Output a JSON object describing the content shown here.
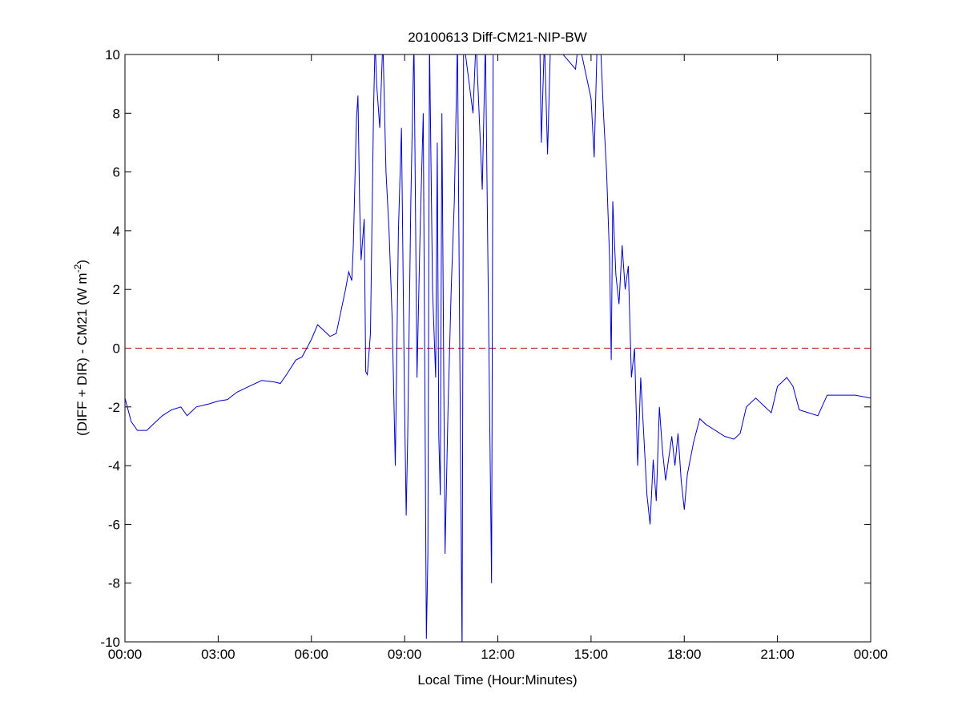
{
  "chart_data": {
    "type": "line",
    "title": "20100613 Diff-CM21-NIP-BW",
    "xlabel": "Local Time (Hour:Minutes)",
    "ylabel_main": "(DIFF + DIR) - CM21 (W m",
    "ylabel_sup": "-2",
    "ylabel_close": ")",
    "xlim": [
      "00:00",
      "00:00 (next day)"
    ],
    "ylim": [
      -10,
      10
    ],
    "grid": false,
    "x_ticks": [
      "00:00",
      "03:00",
      "06:00",
      "09:00",
      "12:00",
      "15:00",
      "18:00",
      "21:00",
      "00:00"
    ],
    "y_ticks": [
      "-10",
      "-8",
      "-6",
      "-4",
      "-2",
      "0",
      "2",
      "4",
      "6",
      "8",
      "10"
    ],
    "reference_line": {
      "y": 0,
      "style": "dashed",
      "color": "#c00000"
    },
    "series_color": "#0000cc",
    "x_unit": "hours of day",
    "series": [
      {
        "points": [
          [
            0,
            -1.7
          ],
          [
            0.2,
            -2.5
          ],
          [
            0.4,
            -2.8
          ],
          [
            0.7,
            -2.8
          ],
          [
            0.9,
            -2.6
          ],
          [
            1.2,
            -2.3
          ],
          [
            1.5,
            -2.1
          ],
          [
            1.8,
            -2.0
          ],
          [
            2.0,
            -2.3
          ],
          [
            2.3,
            -2.0
          ],
          [
            2.7,
            -1.9
          ],
          [
            3.0,
            -1.8
          ],
          [
            3.3,
            -1.75
          ],
          [
            3.6,
            -1.5
          ],
          [
            4.0,
            -1.3
          ],
          [
            4.4,
            -1.1
          ],
          [
            4.8,
            -1.15
          ],
          [
            5.0,
            -1.2
          ],
          [
            5.2,
            -0.9
          ],
          [
            5.5,
            -0.4
          ],
          [
            5.7,
            -0.3
          ],
          [
            6.0,
            0.3
          ],
          [
            6.2,
            0.8
          ],
          [
            6.4,
            0.6
          ],
          [
            6.6,
            0.4
          ],
          [
            6.8,
            0.5
          ],
          [
            7.0,
            1.5
          ],
          [
            7.1,
            2.0
          ],
          [
            7.2,
            2.6
          ],
          [
            7.3,
            2.3
          ],
          [
            7.35,
            3.5
          ],
          [
            7.45,
            7.8
          ],
          [
            7.5,
            8.6
          ],
          [
            7.55,
            5.0
          ],
          [
            7.6,
            3.0
          ],
          [
            7.7,
            4.4
          ],
          [
            7.75,
            -0.8
          ],
          [
            7.8,
            -0.9
          ],
          [
            7.9,
            0.5
          ],
          [
            8.0,
            8
          ],
          [
            8.05,
            10.5
          ],
          [
            8.1,
            9
          ],
          [
            8.2,
            7.5
          ],
          [
            8.3,
            10.5
          ],
          [
            8.4,
            6
          ],
          [
            8.5,
            4
          ],
          [
            8.6,
            1
          ],
          [
            8.7,
            -4
          ],
          [
            8.8,
            4
          ],
          [
            8.9,
            7.5
          ],
          [
            9.0,
            -2
          ],
          [
            9.05,
            -5.7
          ],
          [
            9.1,
            -3
          ],
          [
            9.2,
            5
          ],
          [
            9.3,
            10.5
          ],
          [
            9.4,
            -1
          ],
          [
            9.5,
            4
          ],
          [
            9.6,
            8
          ],
          [
            9.7,
            -9.9
          ],
          [
            9.75,
            -7
          ],
          [
            9.8,
            10.5
          ],
          [
            9.9,
            2
          ],
          [
            10.0,
            -1
          ],
          [
            10.05,
            7
          ],
          [
            10.1,
            -3
          ],
          [
            10.15,
            -5
          ],
          [
            10.2,
            8
          ],
          [
            10.3,
            -7
          ],
          [
            10.4,
            -2
          ],
          [
            10.5,
            2
          ],
          [
            10.6,
            5
          ],
          [
            10.7,
            10.5
          ],
          [
            10.85,
            -10.5
          ],
          [
            10.9,
            10.5
          ],
          [
            11.2,
            8
          ],
          [
            11.3,
            10.5
          ],
          [
            11.5,
            5.4
          ],
          [
            11.6,
            10.5
          ],
          [
            11.8,
            -8
          ],
          [
            11.85,
            10.5
          ],
          [
            13.35,
            10.5
          ],
          [
            13.4,
            7
          ],
          [
            13.5,
            10.5
          ],
          [
            13.6,
            6.6
          ],
          [
            13.7,
            10.5
          ],
          [
            14.5,
            9.5
          ],
          [
            14.6,
            10.5
          ],
          [
            15.0,
            8.5
          ],
          [
            15.1,
            6.5
          ],
          [
            15.2,
            10.5
          ],
          [
            15.3,
            10.5
          ],
          [
            15.4,
            8
          ],
          [
            15.5,
            6
          ],
          [
            15.6,
            3
          ],
          [
            15.65,
            -0.4
          ],
          [
            15.7,
            5
          ],
          [
            15.8,
            2.5
          ],
          [
            15.9,
            1.5
          ],
          [
            16.0,
            3.5
          ],
          [
            16.1,
            2
          ],
          [
            16.2,
            2.8
          ],
          [
            16.3,
            -1
          ],
          [
            16.4,
            0
          ],
          [
            16.5,
            -4
          ],
          [
            16.6,
            -1
          ],
          [
            16.7,
            -3
          ],
          [
            16.8,
            -5
          ],
          [
            16.9,
            -6
          ],
          [
            17.0,
            -3.8
          ],
          [
            17.1,
            -5.2
          ],
          [
            17.2,
            -2
          ],
          [
            17.3,
            -3.5
          ],
          [
            17.4,
            -4.5
          ],
          [
            17.6,
            -3
          ],
          [
            17.7,
            -4
          ],
          [
            17.8,
            -2.9
          ],
          [
            17.9,
            -4.5
          ],
          [
            18.0,
            -5.5
          ],
          [
            18.1,
            -4.3
          ],
          [
            18.3,
            -3.2
          ],
          [
            18.5,
            -2.4
          ],
          [
            18.7,
            -2.6
          ],
          [
            19.0,
            -2.8
          ],
          [
            19.3,
            -3.0
          ],
          [
            19.6,
            -3.1
          ],
          [
            19.8,
            -2.9
          ],
          [
            20.0,
            -2.0
          ],
          [
            20.3,
            -1.7
          ],
          [
            20.6,
            -2.0
          ],
          [
            20.8,
            -2.2
          ],
          [
            21.0,
            -1.3
          ],
          [
            21.3,
            -1.0
          ],
          [
            21.5,
            -1.3
          ],
          [
            21.7,
            -2.1
          ],
          [
            22.0,
            -2.2
          ],
          [
            22.3,
            -2.3
          ],
          [
            22.6,
            -1.6
          ],
          [
            23.0,
            -1.6
          ],
          [
            23.5,
            -1.6
          ],
          [
            24.0,
            -1.7
          ]
        ]
      }
    ]
  }
}
